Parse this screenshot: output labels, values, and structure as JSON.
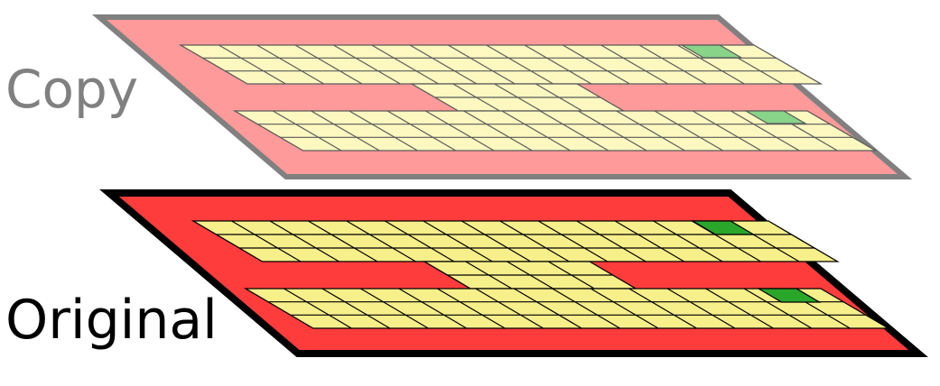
{
  "layers": [
    {
      "id": "copy",
      "label": "Copy",
      "label_color": "#808080",
      "board_fill": "#ff9a9a",
      "board_stroke": "#808080",
      "cell_fill": "#fcf8c0",
      "grid_stroke": "#5a5a5a",
      "marker_fill": "#88d488"
    },
    {
      "id": "original",
      "label": "Original",
      "label_color": "#000000",
      "board_fill": "#ff3c3c",
      "board_stroke": "#000000",
      "cell_fill": "#f7ef8a",
      "grid_stroke": "#000000",
      "marker_fill": "#2aa62a"
    }
  ]
}
